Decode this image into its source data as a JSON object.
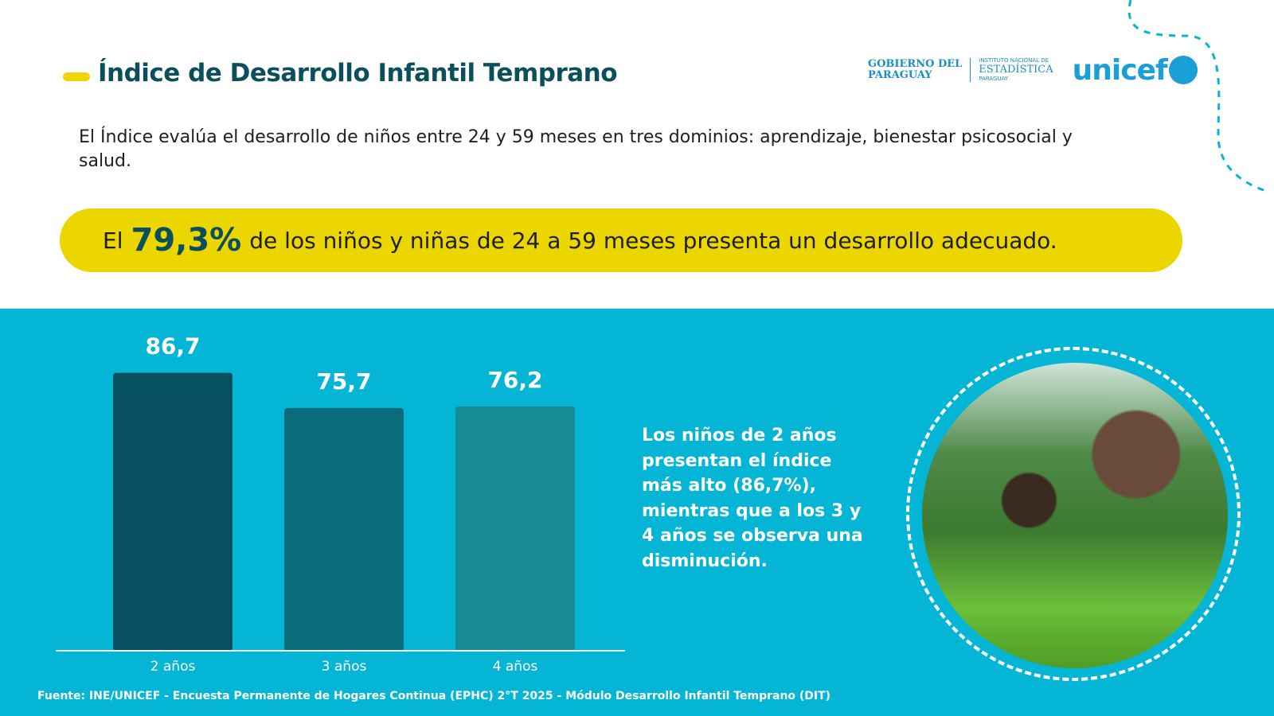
{
  "header": {
    "title": "Índice de Desarrollo Infantil Temprano"
  },
  "logos": {
    "gobierno_line1": "GOBIERNO DEL",
    "gobierno_line2": "PARAGUAY",
    "ine_line1": "INSTITUTO NACIONAL DE",
    "ine_line2": "ESTADÍSTICA",
    "ine_line3": "PARAGUAY",
    "unicef": "unicef"
  },
  "intro": "El Índice evalúa el desarrollo de niños entre 24 y 59 meses en tres dominios: aprendizaje, bienestar psicosocial y salud.",
  "highlight": {
    "prefix": "El",
    "value": "79,3%",
    "suffix": "de los niños y niñas de 24 a 59 meses presenta un desarrollo adecuado."
  },
  "note": "Los niños de 2 años presentan el índice más alto (86,7%), mientras que a los 3 y 4 años se observa una disminución.",
  "source": "Fuente: INE/UNICEF - Encuesta Permanente de Hogares Continua (EPHC) 2°T 2025 - Módulo Desarrollo Infantil Temprano (DIT)",
  "colors": {
    "title": "#0b4f5c",
    "yellow": "#ecd600",
    "band": "#05b5d6",
    "bars": [
      "#06505f",
      "#0a6b7a",
      "#178b93"
    ]
  },
  "chart_data": {
    "type": "bar",
    "title": "",
    "categories": [
      "2 años",
      "3 años",
      "4 años"
    ],
    "values": [
      86.7,
      75.7,
      76.2
    ],
    "value_labels": [
      "86,7",
      "75,7",
      "76,2"
    ],
    "xlabel": "",
    "ylabel": "",
    "ylim": [
      0,
      100
    ],
    "grid": false
  }
}
